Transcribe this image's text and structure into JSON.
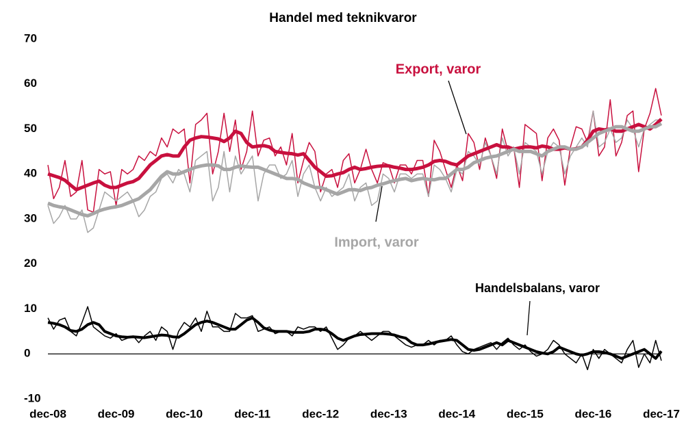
{
  "chart_data": {
    "type": "line",
    "title": "Handel med teknikvaror",
    "categories": [
      "dec-08",
      null,
      null,
      null,
      null,
      null,
      null,
      null,
      null,
      null,
      null,
      null,
      "dec-09",
      null,
      null,
      null,
      null,
      null,
      null,
      null,
      null,
      null,
      null,
      null,
      "dec-10",
      null,
      null,
      null,
      null,
      null,
      null,
      null,
      null,
      null,
      null,
      null,
      "dec-11",
      null,
      null,
      null,
      null,
      null,
      null,
      null,
      null,
      null,
      null,
      null,
      "dec-12",
      null,
      null,
      null,
      null,
      null,
      null,
      null,
      null,
      null,
      null,
      null,
      "dec-13",
      null,
      null,
      null,
      null,
      null,
      null,
      null,
      null,
      null,
      null,
      null,
      "dec-14",
      null,
      null,
      null,
      null,
      null,
      null,
      null,
      null,
      null,
      null,
      null,
      "dec-15",
      null,
      null,
      null,
      null,
      null,
      null,
      null,
      null,
      null,
      null,
      null,
      "dec-16",
      null,
      null,
      null,
      null,
      null,
      null,
      null,
      null,
      null,
      null,
      null,
      "dec-17"
    ],
    "ylim": [
      -10,
      70
    ],
    "yticks": [
      -10,
      0,
      10,
      20,
      30,
      40,
      50,
      60,
      70
    ],
    "grid": false,
    "series": [
      {
        "name": "Export, varor",
        "color": "#c8103e",
        "values": [
          42,
          34.5,
          37,
          43,
          35,
          36,
          43,
          32,
          31.5,
          41,
          40,
          40.5,
          33,
          41,
          40,
          41,
          44,
          43,
          45,
          44,
          48,
          46,
          50,
          49,
          50,
          38,
          51,
          52,
          53.5,
          40,
          45,
          53.5,
          45,
          52,
          41,
          45,
          54,
          44,
          47.5,
          48,
          44,
          46,
          42,
          49,
          38,
          43,
          47,
          45,
          36,
          40,
          41,
          37,
          43,
          44.5,
          38,
          41,
          45.5,
          41,
          38,
          42.5,
          42,
          38,
          42,
          42,
          40,
          43,
          43,
          35,
          47.5,
          45,
          41,
          37,
          42,
          38.5,
          49,
          47,
          41,
          48,
          44,
          39,
          50,
          45,
          46,
          37,
          51,
          50,
          49,
          38.5,
          48,
          50,
          47.5,
          37.5,
          46,
          50.5,
          50,
          47,
          54,
          44,
          46,
          56.5,
          44,
          47,
          53,
          54,
          40.5,
          50,
          53.5,
          59,
          53
        ],
        "trend": [
          40,
          39.6,
          39.2,
          38.6,
          37.5,
          36.5,
          37,
          37.5,
          38,
          38.4,
          37.5,
          37,
          37,
          37.5,
          38,
          38.3,
          39,
          40.5,
          42,
          43,
          44,
          44.3,
          44,
          44,
          46,
          47.5,
          48,
          48.3,
          48.2,
          48,
          47.8,
          47.2,
          48,
          49.5,
          49,
          47,
          46,
          46.2,
          46.3,
          46,
          45,
          44.8,
          44.6,
          44.5,
          44.2,
          44.5,
          43,
          41.5,
          40.5,
          39.5,
          39.6,
          40,
          40.3,
          41,
          41.5,
          41,
          41.2,
          41.5,
          41.7,
          41.8,
          41.8,
          41.5,
          41.3,
          41,
          41,
          41.2,
          41.5,
          42,
          42.8,
          43,
          42.8,
          42.3,
          42,
          43,
          44,
          44.5,
          45,
          45.5,
          46,
          46.5,
          46,
          46,
          45.5,
          45.8,
          46,
          46,
          45.8,
          46.2,
          46,
          45.5,
          45.5,
          45.8,
          45.5,
          45.6,
          46,
          47.5,
          49.5,
          50,
          49.8,
          50,
          49.5,
          49.5,
          50,
          50.5,
          51,
          50.5,
          50,
          51,
          52.2
        ]
      },
      {
        "name": "Import, varor",
        "color": "#a6a6a6",
        "values": [
          33,
          29,
          30.5,
          33,
          30,
          30,
          32,
          27,
          28,
          32,
          36,
          35,
          34,
          35,
          36,
          34,
          30.5,
          32,
          35,
          36,
          39,
          40,
          38,
          41,
          40,
          36,
          43,
          44,
          45,
          34,
          37,
          45,
          36,
          44,
          40,
          42,
          44,
          34,
          40,
          42,
          42,
          39,
          40,
          43,
          35,
          40,
          42,
          37,
          34,
          37,
          35,
          36,
          37,
          40,
          34,
          37,
          38,
          33,
          34,
          40,
          39,
          36,
          40,
          40,
          39,
          40,
          40,
          35,
          42,
          41,
          39,
          36,
          41,
          40,
          45,
          44,
          42,
          47,
          44,
          40,
          48,
          44,
          46,
          40,
          47,
          46,
          45,
          40,
          45,
          47,
          46,
          40,
          44,
          46,
          48,
          46,
          54,
          46,
          47,
          50,
          47,
          48,
          52,
          50,
          46,
          50,
          51,
          52,
          52
        ],
        "trend": [
          33.5,
          33,
          32.7,
          32.5,
          32,
          31.5,
          31,
          30.7,
          31.2,
          31.8,
          32.2,
          32.5,
          32.7,
          33,
          33.5,
          34,
          34.5,
          35.5,
          36.5,
          38,
          39.5,
          40.5,
          40,
          40,
          40.5,
          41,
          41.5,
          41.8,
          42,
          42,
          41.8,
          41,
          41,
          41.5,
          41.8,
          41.6,
          41.5,
          41.5,
          41,
          40.5,
          40,
          39.5,
          39,
          39,
          38.8,
          38,
          37.5,
          37,
          37,
          36.5,
          36,
          35.5,
          36,
          36.5,
          36.5,
          36.3,
          36.8,
          37,
          37.5,
          37.8,
          38.2,
          38.5,
          38.8,
          39,
          38.5,
          38.8,
          39,
          38.8,
          38.7,
          39,
          39,
          40,
          41,
          41,
          41.5,
          42.5,
          43,
          43.5,
          43.8,
          44,
          44.5,
          45,
          45.5,
          45,
          45,
          45,
          44.5,
          44,
          45,
          45.5,
          46,
          46,
          45.5,
          45.5,
          46,
          47,
          48,
          49,
          49.5,
          50,
          50.5,
          50.5,
          50,
          49.5,
          49.5,
          50,
          50.5,
          50.5,
          51.2
        ]
      },
      {
        "name": "Handelsbalans, varor",
        "color": "#000000",
        "values": [
          8,
          5.5,
          7.5,
          8,
          5,
          4,
          7,
          10.5,
          6,
          5,
          4,
          3.5,
          4.5,
          3,
          3.5,
          4,
          2.5,
          4,
          5,
          3,
          6,
          5,
          1,
          5,
          7,
          6,
          8,
          5,
          9.5,
          6,
          6,
          5,
          5,
          9,
          8,
          8,
          8.5,
          5,
          5.5,
          6,
          4.5,
          5,
          5,
          4,
          6,
          5.5,
          6,
          6,
          5,
          6,
          3.5,
          1,
          2,
          3.5,
          4,
          5,
          4,
          3,
          4,
          5,
          5,
          4,
          3,
          2,
          1.5,
          2,
          2,
          3,
          2,
          3,
          3,
          4,
          2,
          0.5,
          0,
          1,
          1.5,
          2,
          2.5,
          1,
          2.5,
          3.5,
          2,
          1,
          2,
          0.5,
          -0.5,
          0,
          1,
          3,
          2,
          0,
          -1,
          -2,
          0,
          -3.5,
          1,
          -1,
          1,
          0,
          -1,
          -2,
          1,
          3,
          -3,
          0,
          -2,
          3,
          -1.5
        ],
        "trend": [
          7,
          6.8,
          6.5,
          6,
          5.2,
          5,
          5.5,
          6.5,
          7,
          6.5,
          5,
          4.5,
          4,
          3.8,
          3.7,
          3.8,
          3.7,
          3.6,
          3.8,
          4,
          4.2,
          4.1,
          3.8,
          3.7,
          4.5,
          5.5,
          6.5,
          7,
          7.3,
          7,
          6.5,
          6,
          5.5,
          5.5,
          6.5,
          7.5,
          8,
          7,
          5.8,
          5.3,
          5,
          5,
          5,
          4.8,
          4.8,
          4.8,
          5,
          5.5,
          5.5,
          5.3,
          4.5,
          3.5,
          3,
          3.5,
          4,
          4.3,
          4.4,
          4.5,
          4.5,
          4.5,
          4.4,
          4.2,
          3.8,
          3.5,
          2.5,
          2,
          2,
          2.2,
          2.5,
          2.8,
          3,
          3.2,
          3,
          2,
          1,
          0.8,
          1,
          1.5,
          2,
          2.5,
          2,
          3,
          2.5,
          2,
          1.5,
          1,
          0.5,
          0.2,
          0,
          0.5,
          1.5,
          1,
          0.5,
          0,
          -0.3,
          0,
          0.5,
          0.5,
          0.3,
          0,
          -0.5,
          -1,
          -0.5,
          0,
          0.5,
          1,
          0,
          -1,
          0.6
        ]
      }
    ]
  }
}
